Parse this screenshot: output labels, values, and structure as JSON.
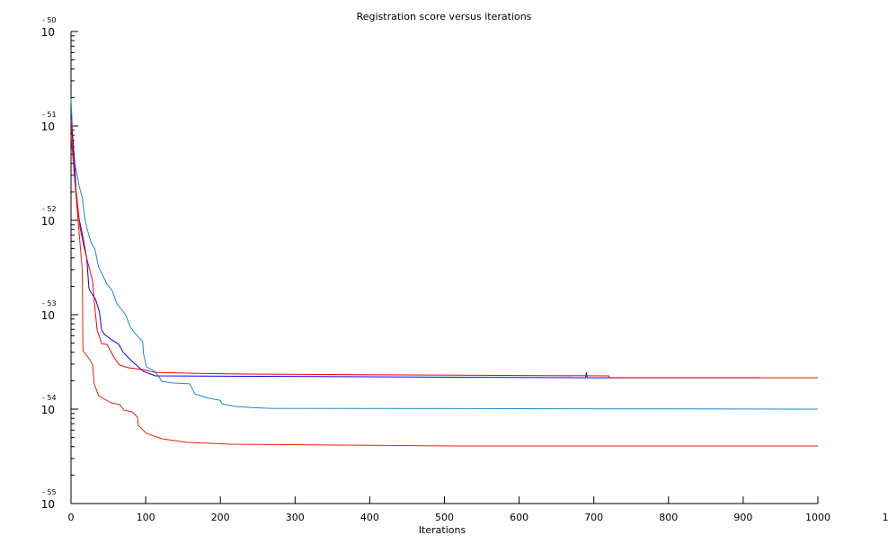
{
  "chart_data": {
    "type": "line",
    "title": "Registration score versus iterations",
    "xlabel": "Iterations",
    "ylabel": "",
    "xlim": [
      0,
      1000
    ],
    "ylim": [
      1e-55,
      1e-50
    ],
    "y_scale": "log",
    "grid": false,
    "x_ticks": [
      "0",
      "100",
      "200",
      "300",
      "400",
      "500",
      "600",
      "700",
      "800",
      "900",
      "1000"
    ],
    "x_tick_overflow_label": "1",
    "y_ticks": [
      {
        "base": "10",
        "exponent": "-50",
        "value": 1e-50
      },
      {
        "base": "10",
        "exponent": "-51",
        "value": 1e-51
      },
      {
        "base": "10",
        "exponent": "-52",
        "value": 1e-52
      },
      {
        "base": "10",
        "exponent": "-53",
        "value": 1e-53
      },
      {
        "base": "10",
        "exponent": "-54",
        "value": 1e-54
      },
      {
        "base": "10",
        "exponent": "-55",
        "value": 1e-55
      }
    ],
    "series": [
      {
        "color": "#1a8ad4",
        "x": [
          0,
          3,
          5,
          8,
          11,
          15,
          18,
          21,
          27,
          32,
          37,
          43,
          48,
          55,
          61,
          73,
          79,
          85,
          96,
          97,
          101,
          112,
          122,
          137,
          159,
          166,
          185,
          200,
          202,
          218,
          242,
          266,
          1000
        ],
        "y": [
          1.93e-51,
          6.04e-52,
          3.89e-52,
          3.13e-52,
          2.3e-52,
          1.73e-52,
          1.12e-52,
          8.39e-53,
          5.78e-53,
          4.95e-53,
          3.2e-53,
          2.57e-53,
          2.11e-53,
          1.81e-53,
          1.33e-53,
          1e-53,
          7.52e-54,
          6.46e-54,
          5.18e-54,
          3.89e-54,
          2.81e-54,
          2.51e-54,
          1.97e-54,
          1.89e-54,
          1.85e-54,
          1.45e-54,
          1.3e-54,
          1.24e-54,
          1.14e-54,
          1.07e-54,
          1.04e-54,
          1.02e-54,
          1e-54
        ]
      },
      {
        "color": "#0000ff",
        "x": [
          0,
          3,
          5,
          7,
          10,
          15,
          21,
          24,
          25,
          33,
          38,
          41,
          45,
          53,
          64,
          70,
          82,
          97,
          113,
          689,
          690,
          691,
          922
        ],
        "y": [
          1.17e-51,
          6.46e-52,
          3.89e-52,
          1.85e-52,
          1.12e-52,
          7.19e-53,
          3.98e-53,
          1.93e-53,
          1.81e-53,
          1.45e-53,
          1.07e-53,
          6.89e-54,
          6.17e-54,
          5.53e-54,
          4.85e-54,
          3.98e-54,
          3.2e-54,
          2.51e-54,
          2.25e-54,
          2.15e-54,
          2.45e-54,
          2.15e-54,
          2.15e-54
        ]
      },
      {
        "color": "#ff0000",
        "x": [
          0,
          5,
          8,
          12,
          17,
          21,
          29,
          32,
          35,
          41,
          48,
          58,
          65,
          77,
          97,
          113,
          161,
          236,
          450,
          720,
          721,
          1000
        ],
        "y": [
          1.12e-51,
          2.69e-52,
          1.73e-52,
          8.39e-53,
          5.41e-53,
          3.98e-53,
          2.25e-53,
          1.17e-53,
          6.89e-54,
          4.95e-54,
          4.85e-54,
          3.49e-54,
          2.93e-54,
          2.74e-54,
          2.62e-54,
          2.45e-54,
          2.4e-54,
          2.35e-54,
          2.3e-54,
          2.25e-54,
          2.15e-54,
          2.15e-54
        ]
      },
      {
        "color": "#e8200a",
        "x": [
          0,
          8,
          15,
          16,
          25,
          29,
          31,
          37,
          43,
          53,
          65,
          71,
          82,
          89,
          90,
          101,
          122,
          154,
          185,
          214,
          360,
          510,
          1000
        ],
        "y": [
          8.04e-52,
          1.39e-52,
          2.99e-53,
          4.16e-54,
          3.34e-54,
          2.93e-54,
          1.85e-54,
          1.39e-54,
          1.3e-54,
          1.17e-54,
          1.12e-54,
          9.77e-55,
          9.35e-55,
          8.2e-55,
          6.75e-55,
          5.53e-55,
          4.85e-55,
          4.45e-55,
          4.35e-55,
          4.25e-55,
          4.16e-55,
          4.07e-55,
          4.07e-55
        ]
      }
    ]
  }
}
